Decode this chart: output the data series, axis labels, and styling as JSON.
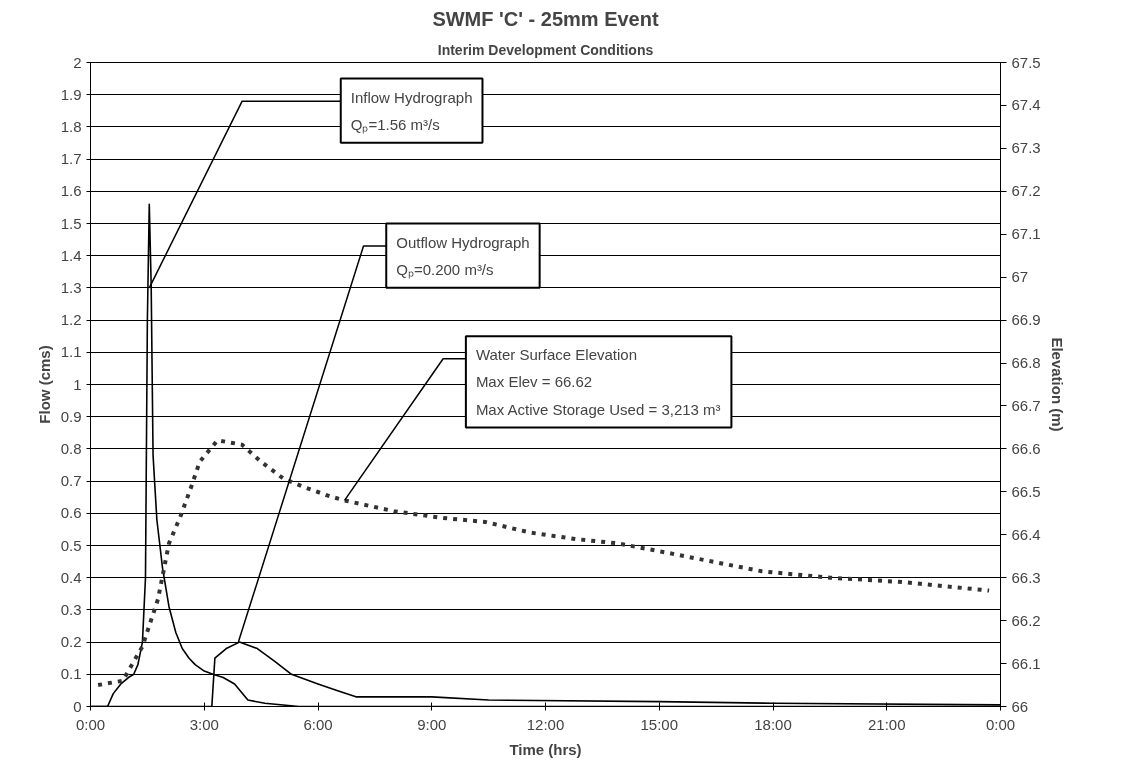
{
  "chart_data": {
    "type": "line",
    "title": "SWMF 'C' - 25mm Event",
    "subtitle": "Interim Development Conditions",
    "xlabel": "Time (hrs)",
    "ylabel": "Flow (cms)",
    "y2label": "Elevation (m)",
    "xlim": [
      0,
      24
    ],
    "xticks": [
      {
        "value": 0,
        "label": "0:00"
      },
      {
        "value": 3,
        "label": "3:00"
      },
      {
        "value": 6,
        "label": "6:00"
      },
      {
        "value": 9,
        "label": "9:00"
      },
      {
        "value": 12,
        "label": "12:00"
      },
      {
        "value": 15,
        "label": "15:00"
      },
      {
        "value": 18,
        "label": "18:00"
      },
      {
        "value": 21,
        "label": "21:00"
      },
      {
        "value": 24,
        "label": "0:00"
      }
    ],
    "ylim": [
      0,
      2
    ],
    "yticks": [
      0,
      0.1,
      0.2,
      0.3,
      0.4,
      0.5,
      0.6,
      0.7,
      0.8,
      0.9,
      1,
      1.1,
      1.2,
      1.3,
      1.4,
      1.5,
      1.6,
      1.7,
      1.8,
      1.9,
      2
    ],
    "y2lim": [
      66,
      67.5
    ],
    "y2ticks": [
      66,
      66.1,
      66.2,
      66.3,
      66.4,
      66.5,
      66.6,
      66.7,
      66.8,
      66.9,
      67,
      67.1,
      67.2,
      67.3,
      67.4,
      67.5
    ],
    "grid": "y",
    "legend": false,
    "marker": "none",
    "series": [
      {
        "name": "Inflow Hydrograph",
        "color": "#000000",
        "line_style": "solid",
        "x": [
          0,
          0.45,
          0.6,
          0.8,
          1.0,
          1.14,
          1.25,
          1.37,
          1.45,
          1.5,
          1.55,
          1.6,
          1.65,
          1.75,
          1.83,
          1.9,
          2.07,
          2.25,
          2.42,
          2.6,
          2.76,
          3.0,
          3.23,
          3.5,
          3.8,
          4.15,
          4.6,
          5.5,
          24
        ],
        "values": [
          0,
          0,
          0.04,
          0.07,
          0.09,
          0.1,
          0.13,
          0.2,
          0.4,
          1.2,
          1.56,
          1.31,
          0.78,
          0.58,
          0.5,
          0.43,
          0.31,
          0.23,
          0.18,
          0.15,
          0.13,
          0.11,
          0.1,
          0.09,
          0.07,
          0.02,
          0.01,
          0,
          0
        ]
      },
      {
        "name": "Outflow Hydrograph",
        "color": "#000000",
        "line_style": "solid",
        "x": [
          0,
          3.2,
          3.28,
          3.58,
          3.93,
          4.4,
          4.86,
          5.3,
          6.0,
          6.5,
          7.0,
          9.0,
          10.5,
          15.0,
          18.0,
          24.0
        ],
        "values": [
          0,
          0,
          0.15,
          0.18,
          0.2,
          0.18,
          0.14,
          0.1,
          0.07,
          0.05,
          0.03,
          0.03,
          0.02,
          0.015,
          0.01,
          0.005
        ]
      },
      {
        "name": "Water Surface Elevation",
        "color": "#333333",
        "line_style": "dashed",
        "axis": "y2",
        "x": [
          0.2,
          0.85,
          1.37,
          1.78,
          2.07,
          2.36,
          2.65,
          2.88,
          3.35,
          3.99,
          4.5,
          5.1,
          5.67,
          6.3,
          6.7,
          8.0,
          9.2,
          10.4,
          11.6,
          12.8,
          13.9,
          15.1,
          17.7,
          19.5,
          21.4,
          23.7
        ],
        "values": [
          66.05,
          66.06,
          66.14,
          66.25,
          66.38,
          66.44,
          66.51,
          66.57,
          66.62,
          66.61,
          66.57,
          66.53,
          66.51,
          66.49,
          66.48,
          66.455,
          66.44,
          66.43,
          66.405,
          66.39,
          66.38,
          66.36,
          66.315,
          66.3,
          66.29,
          66.27
        ]
      }
    ],
    "annotations": [
      {
        "text": "Qₚ=1.56 m³/s",
        "x": 1.55,
        "y": 1.3
      },
      {
        "text": "Qₚ=0.200 m³/s",
        "x": 3.9,
        "y": 0.2
      },
      {
        "text": "Max Elev = 66.62\nMax Active Storage Used = 3,213 m³",
        "x": 6.7,
        "y": 0.64
      }
    ]
  }
}
